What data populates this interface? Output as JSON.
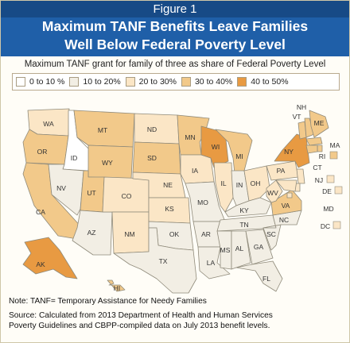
{
  "header": {
    "figure_label": "Figure 1",
    "title_line1": "Maximum TANF Benefits Leave Families",
    "title_line2": "Well Below Federal Poverty Level"
  },
  "subtitle": "Maximum TANF grant for family of three as share of Federal Poverty Level",
  "legend": [
    {
      "label": "0 to 10 %",
      "color": "#ffffff"
    },
    {
      "label": "10 to 20%",
      "color": "#f2eee4"
    },
    {
      "label": "20 to 30%",
      "color": "#fbe6c6"
    },
    {
      "label": "30 to 40%",
      "color": "#f2c98a"
    },
    {
      "label": "40 to 50%",
      "color": "#e89a42"
    }
  ],
  "states": {
    "WA": {
      "bin": 2
    },
    "OR": {
      "bin": 3
    },
    "CA": {
      "bin": 3
    },
    "ID": {
      "bin": 0
    },
    "NV": {
      "bin": 1
    },
    "MT": {
      "bin": 3
    },
    "WY": {
      "bin": 3
    },
    "UT": {
      "bin": 3
    },
    "AZ": {
      "bin": 1
    },
    "CO": {
      "bin": 2
    },
    "NM": {
      "bin": 2
    },
    "ND": {
      "bin": 2
    },
    "SD": {
      "bin": 3
    },
    "NE": {
      "bin": 2
    },
    "KS": {
      "bin": 2
    },
    "OK": {
      "bin": 1
    },
    "TX": {
      "bin": 1
    },
    "MN": {
      "bin": 3
    },
    "IA": {
      "bin": 2
    },
    "MO": {
      "bin": 1
    },
    "AR": {
      "bin": 1
    },
    "LA": {
      "bin": 1
    },
    "WI": {
      "bin": 4
    },
    "IL": {
      "bin": 2
    },
    "MI": {
      "bin": 3
    },
    "IN": {
      "bin": 1
    },
    "OH": {
      "bin": 2
    },
    "KY": {
      "bin": 1
    },
    "TN": {
      "bin": 1
    },
    "MS": {
      "bin": 1
    },
    "AL": {
      "bin": 1
    },
    "GA": {
      "bin": 1
    },
    "FL": {
      "bin": 1
    },
    "SC": {
      "bin": 1
    },
    "NC": {
      "bin": 1
    },
    "VA": {
      "bin": 3
    },
    "WV": {
      "bin": 2
    },
    "PA": {
      "bin": 2
    },
    "NY": {
      "bin": 4
    },
    "VT": {
      "bin": 3
    },
    "NH": {
      "bin": 3
    },
    "ME": {
      "bin": 3
    },
    "MA": {
      "bin": 3
    },
    "RI": {
      "bin": 3
    },
    "CT": {
      "bin": 3
    },
    "NJ": {
      "bin": 2
    },
    "DE": {
      "bin": 2
    },
    "MD": {
      "bin": 2
    },
    "DC": {
      "bin": 2
    },
    "AK": {
      "bin": 4
    },
    "HI": {
      "bin": 3
    }
  },
  "footer": {
    "note": "Note: TANF= Temporary Assistance for Needy Families",
    "source_line1": "Source: Calculated from 2013 Department of Health and Human Services",
    "source_line2": "Poverty Guidelines and CBPP-compiled data on July 2013 benefit levels."
  }
}
